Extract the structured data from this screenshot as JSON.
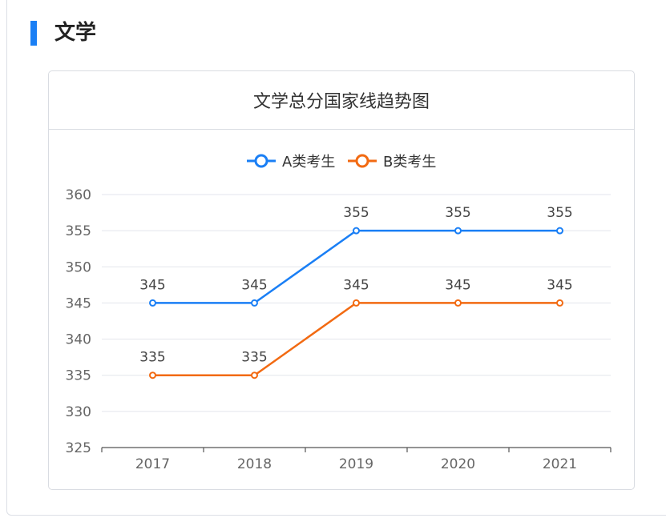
{
  "section": {
    "title": "文学"
  },
  "chart_data": {
    "type": "line",
    "title": "文学总分国家线趋势图",
    "categories": [
      "2017",
      "2018",
      "2019",
      "2020",
      "2021"
    ],
    "series": [
      {
        "name": "A类考生",
        "values": [
          345,
          345,
          355,
          355,
          355
        ],
        "color": "#1a7ff5"
      },
      {
        "name": "B类考生",
        "values": [
          335,
          335,
          345,
          345,
          345
        ],
        "color": "#f26a12"
      }
    ],
    "ylim": [
      325,
      360
    ],
    "yticks": [
      325,
      330,
      335,
      340,
      345,
      350,
      355,
      360
    ],
    "grid": true,
    "legend": "top-center",
    "xlabel": "",
    "ylabel": ""
  }
}
